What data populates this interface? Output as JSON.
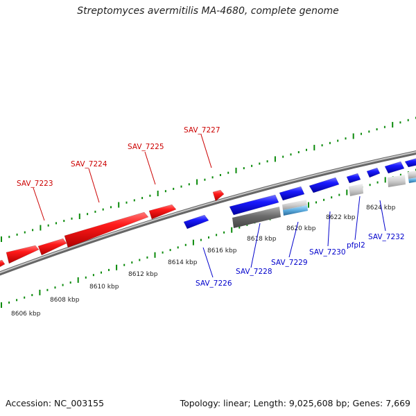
{
  "title": "Streptomyces avermitilis MA-4680, complete genome",
  "footer": {
    "accession": "Accession: NC_003155",
    "topology": "Topology: linear; Length: 9,025,608 bp; Genes: 7,669"
  },
  "colors": {
    "forward_gene": "#ee1111",
    "reverse_gene": "#1111ee",
    "forward_label": "#cc0000",
    "reverse_label": "#0000cc",
    "backbone": "#8a8a8a",
    "tick": "#0a8a0a",
    "other_feature": "#888888",
    "rna_feature": "#55aadd"
  },
  "kbp_labels": [
    "8606 kbp",
    "8608 kbp",
    "8610 kbp",
    "8612 kbp",
    "8614 kbp",
    "8616 kbp",
    "8618 kbp",
    "8620 kbp",
    "8622 kbp",
    "8624 kbp"
  ],
  "forward_genes": [
    "SAV_7223",
    "SAV_7224",
    "SAV_7225",
    "SAV_7227"
  ],
  "reverse_genes": [
    "SAV_7226",
    "SAV_7228",
    "SAV_7229",
    "SAV_7230",
    "pfpI2",
    "SAV_7232"
  ]
}
